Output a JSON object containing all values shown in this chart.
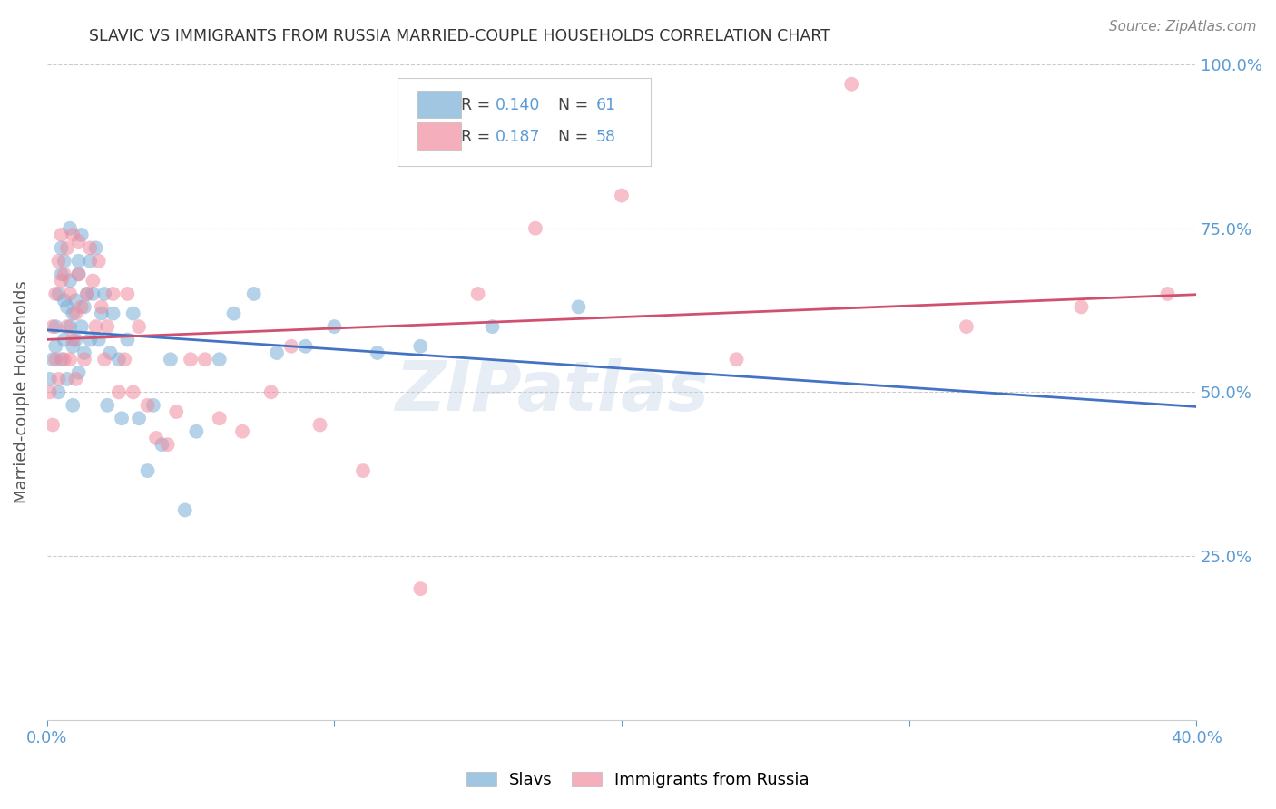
{
  "title": "SLAVIC VS IMMIGRANTS FROM RUSSIA MARRIED-COUPLE HOUSEHOLDS CORRELATION CHART",
  "source": "Source: ZipAtlas.com",
  "ylabel": "Married-couple Households",
  "xlim": [
    0.0,
    0.4
  ],
  "ylim": [
    0.0,
    1.0
  ],
  "xticks": [
    0.0,
    0.1,
    0.2,
    0.3,
    0.4
  ],
  "yticks": [
    0.25,
    0.5,
    0.75,
    1.0
  ],
  "xticklabels": [
    "0.0%",
    "",
    "",
    "",
    "40.0%"
  ],
  "yticklabels": [
    "25.0%",
    "50.0%",
    "75.0%",
    "100.0%"
  ],
  "watermark": "ZIPatlas",
  "slavs_color": "#7aaed6",
  "russia_color": "#f08ca0",
  "trendline_blue": "#4472c4",
  "trendline_pink": "#d05070",
  "background_color": "#ffffff",
  "grid_color": "#cccccc",
  "title_color": "#333333",
  "axis_label_color": "#555555",
  "tick_color": "#5b9bd5",
  "source_color": "#888888",
  "legend_r1": "0.140",
  "legend_n1": "61",
  "legend_r2": "0.187",
  "legend_n2": "58",
  "slavs_x": [
    0.001,
    0.002,
    0.003,
    0.003,
    0.004,
    0.004,
    0.005,
    0.005,
    0.005,
    0.006,
    0.006,
    0.006,
    0.007,
    0.007,
    0.008,
    0.008,
    0.008,
    0.009,
    0.009,
    0.009,
    0.01,
    0.01,
    0.011,
    0.011,
    0.011,
    0.012,
    0.012,
    0.013,
    0.013,
    0.014,
    0.015,
    0.015,
    0.016,
    0.017,
    0.018,
    0.019,
    0.02,
    0.021,
    0.022,
    0.023,
    0.025,
    0.026,
    0.028,
    0.03,
    0.032,
    0.035,
    0.037,
    0.04,
    0.043,
    0.048,
    0.052,
    0.06,
    0.065,
    0.072,
    0.08,
    0.09,
    0.1,
    0.115,
    0.13,
    0.155,
    0.185
  ],
  "slavs_y": [
    0.52,
    0.55,
    0.57,
    0.6,
    0.65,
    0.5,
    0.68,
    0.72,
    0.55,
    0.64,
    0.58,
    0.7,
    0.63,
    0.52,
    0.67,
    0.6,
    0.75,
    0.57,
    0.62,
    0.48,
    0.64,
    0.58,
    0.7,
    0.53,
    0.68,
    0.6,
    0.74,
    0.63,
    0.56,
    0.65,
    0.7,
    0.58,
    0.65,
    0.72,
    0.58,
    0.62,
    0.65,
    0.48,
    0.56,
    0.62,
    0.55,
    0.46,
    0.58,
    0.62,
    0.46,
    0.38,
    0.48,
    0.42,
    0.55,
    0.32,
    0.44,
    0.55,
    0.62,
    0.65,
    0.56,
    0.57,
    0.6,
    0.56,
    0.57,
    0.6,
    0.63
  ],
  "russia_x": [
    0.001,
    0.002,
    0.002,
    0.003,
    0.003,
    0.004,
    0.004,
    0.005,
    0.005,
    0.006,
    0.006,
    0.007,
    0.007,
    0.008,
    0.008,
    0.009,
    0.009,
    0.01,
    0.01,
    0.011,
    0.011,
    0.012,
    0.013,
    0.014,
    0.015,
    0.016,
    0.017,
    0.018,
    0.019,
    0.02,
    0.021,
    0.023,
    0.025,
    0.027,
    0.028,
    0.03,
    0.032,
    0.035,
    0.038,
    0.042,
    0.045,
    0.05,
    0.055,
    0.06,
    0.068,
    0.078,
    0.085,
    0.095,
    0.11,
    0.13,
    0.15,
    0.17,
    0.2,
    0.24,
    0.28,
    0.32,
    0.36,
    0.39
  ],
  "russia_y": [
    0.5,
    0.45,
    0.6,
    0.55,
    0.65,
    0.52,
    0.7,
    0.67,
    0.74,
    0.68,
    0.55,
    0.72,
    0.6,
    0.65,
    0.55,
    0.58,
    0.74,
    0.52,
    0.62,
    0.68,
    0.73,
    0.63,
    0.55,
    0.65,
    0.72,
    0.67,
    0.6,
    0.7,
    0.63,
    0.55,
    0.6,
    0.65,
    0.5,
    0.55,
    0.65,
    0.5,
    0.6,
    0.48,
    0.43,
    0.42,
    0.47,
    0.55,
    0.55,
    0.46,
    0.44,
    0.5,
    0.57,
    0.45,
    0.38,
    0.2,
    0.65,
    0.75,
    0.8,
    0.55,
    0.97,
    0.6,
    0.63,
    0.65
  ]
}
